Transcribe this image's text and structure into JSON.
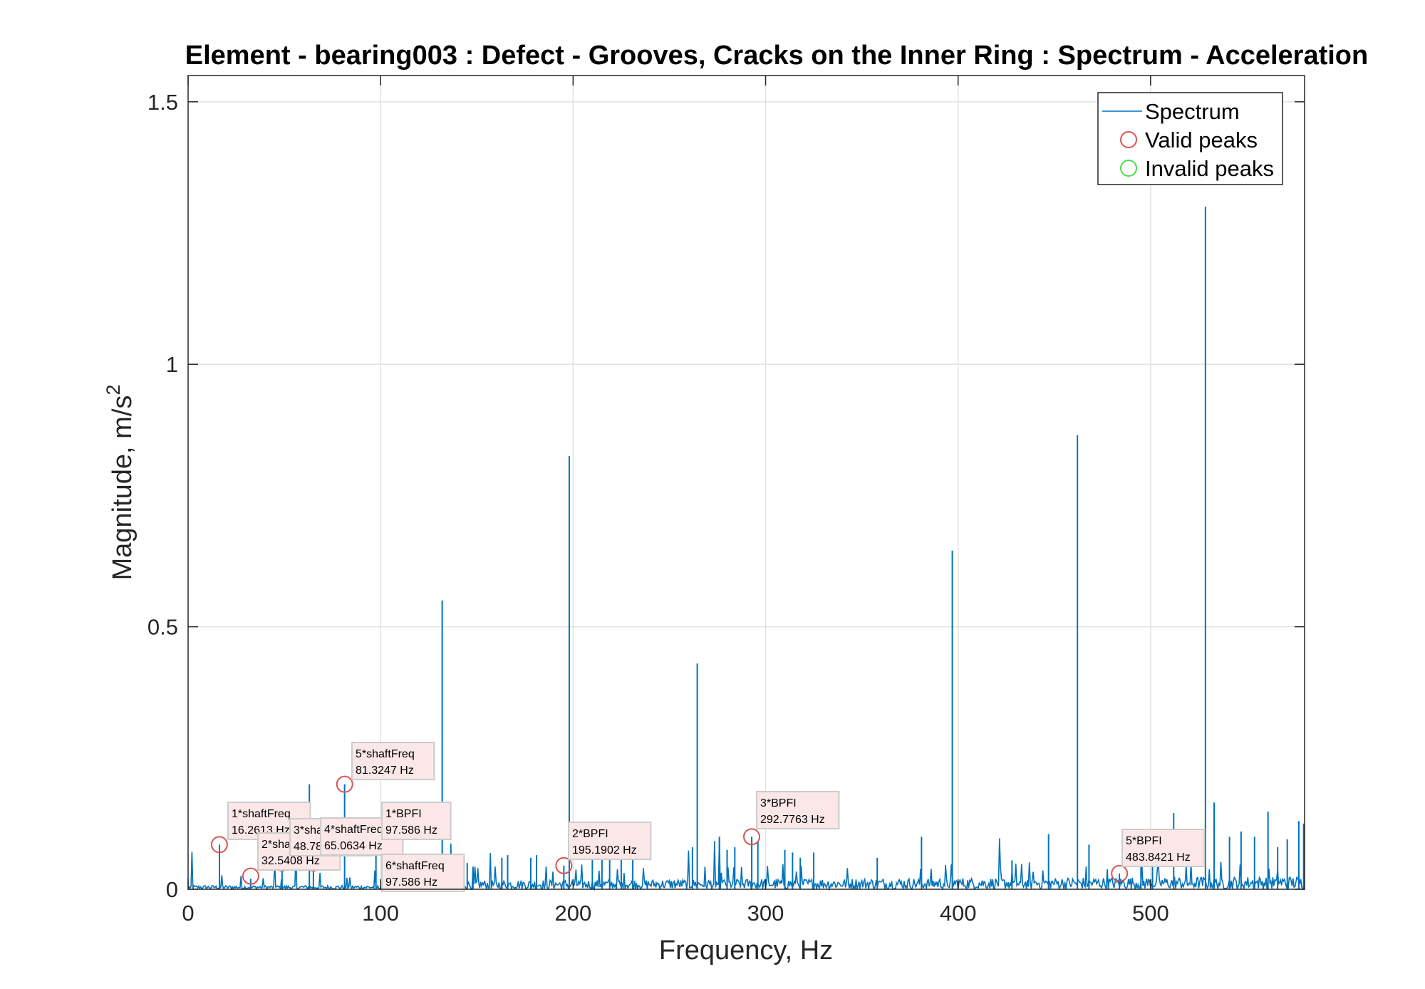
{
  "chart_data": {
    "type": "line",
    "title": "Element - bearing003 : Defect - Grooves, Cracks on the Inner Ring : Spectrum - Acceleration",
    "xlabel": "Frequency, Hz",
    "ylabel": "Magnitude, m/s",
    "ylabel_superscript": "2",
    "xlim": [
      0,
      580
    ],
    "ylim": [
      0,
      1.55
    ],
    "xticks": [
      0,
      100,
      200,
      300,
      400,
      500
    ],
    "xtick_labels": [
      "0",
      "100",
      "200",
      "300",
      "400",
      "500"
    ],
    "yticks": [
      0,
      0.5,
      1,
      1.5
    ],
    "ytick_labels": [
      "0",
      "0.5",
      "1",
      "1.5"
    ],
    "grid": true,
    "legend_position": "top-right",
    "legend": [
      {
        "label": "Spectrum",
        "marker": "line",
        "color": "#0072BD"
      },
      {
        "label": "Valid peaks",
        "marker": "circle",
        "color": "#D95350"
      },
      {
        "label": "Invalid peaks",
        "marker": "circle",
        "color": "#4DDB4D"
      }
    ],
    "series": [
      {
        "name": "Spectrum",
        "color": "#0072BD",
        "peaks": [
          {
            "x": 16.3,
            "y": 0.085
          },
          {
            "x": 32.5,
            "y": 0.02
          },
          {
            "x": 48.8,
            "y": 0.05
          },
          {
            "x": 63.0,
            "y": 0.2
          },
          {
            "x": 65.1,
            "y": 0.045
          },
          {
            "x": 81.3,
            "y": 0.2
          },
          {
            "x": 97.6,
            "y": 0.09
          },
          {
            "x": 132.0,
            "y": 0.55
          },
          {
            "x": 145.0,
            "y": 0.05
          },
          {
            "x": 148.0,
            "y": 0.04
          },
          {
            "x": 163.0,
            "y": 0.06
          },
          {
            "x": 166.0,
            "y": 0.065
          },
          {
            "x": 178.0,
            "y": 0.06
          },
          {
            "x": 181.0,
            "y": 0.065
          },
          {
            "x": 195.2,
            "y": 0.045
          },
          {
            "x": 198.0,
            "y": 0.825
          },
          {
            "x": 210.0,
            "y": 0.07
          },
          {
            "x": 215.0,
            "y": 0.08
          },
          {
            "x": 219.0,
            "y": 0.06
          },
          {
            "x": 225.0,
            "y": 0.07
          },
          {
            "x": 231.0,
            "y": 0.065
          },
          {
            "x": 264.5,
            "y": 0.43
          },
          {
            "x": 262.0,
            "y": 0.08
          },
          {
            "x": 276.0,
            "y": 0.1
          },
          {
            "x": 280.0,
            "y": 0.075
          },
          {
            "x": 284.0,
            "y": 0.08
          },
          {
            "x": 292.8,
            "y": 0.1
          },
          {
            "x": 296.0,
            "y": 0.09
          },
          {
            "x": 310.0,
            "y": 0.075
          },
          {
            "x": 314.0,
            "y": 0.07
          },
          {
            "x": 318.0,
            "y": 0.06
          },
          {
            "x": 325.0,
            "y": 0.07
          },
          {
            "x": 358.0,
            "y": 0.06
          },
          {
            "x": 381.0,
            "y": 0.1
          },
          {
            "x": 397.0,
            "y": 0.645
          },
          {
            "x": 428.0,
            "y": 0.055
          },
          {
            "x": 447.0,
            "y": 0.105
          },
          {
            "x": 462.0,
            "y": 0.865
          },
          {
            "x": 468.0,
            "y": 0.085
          },
          {
            "x": 483.8,
            "y": 0.03
          },
          {
            "x": 495.0,
            "y": 0.085
          },
          {
            "x": 501.0,
            "y": 0.07
          },
          {
            "x": 512.0,
            "y": 0.145
          },
          {
            "x": 528.5,
            "y": 1.3
          },
          {
            "x": 533.0,
            "y": 0.165
          },
          {
            "x": 541.0,
            "y": 0.1
          },
          {
            "x": 547.0,
            "y": 0.11
          },
          {
            "x": 554.0,
            "y": 0.1
          },
          {
            "x": 561.0,
            "y": 0.148
          },
          {
            "x": 566.0,
            "y": 0.08
          },
          {
            "x": 571.0,
            "y": 0.095
          },
          {
            "x": 577.0,
            "y": 0.13
          },
          {
            "x": 579.5,
            "y": 0.125
          }
        ]
      },
      {
        "name": "Valid peaks",
        "color": "#D95350",
        "points": [
          {
            "x": 16.2613,
            "y": 0.085,
            "label_line1": "1*shaftFreq",
            "label_line2": "16.2613 Hz"
          },
          {
            "x": 32.5408,
            "y": 0.025,
            "label_line1": "2*shaftFreq",
            "label_line2": "32.5408 Hz"
          },
          {
            "x": 48.7821,
            "y": 0.05,
            "label_line1": "3*shaftFreq",
            "label_line2": "48.7821 Hz"
          },
          {
            "x": 65.0634,
            "y": 0.05,
            "label_line1": "4*shaftFreq",
            "label_line2": "65.0634 Hz"
          },
          {
            "x": 81.3247,
            "y": 0.2,
            "label_line1": "5*shaftFreq",
            "label_line2": "81.3247 Hz"
          },
          {
            "x": 97.586,
            "y": 0.085,
            "label_line1": "1*BPFI",
            "label_line2": "97.586 Hz"
          },
          {
            "x": 97.586,
            "y": 0.085,
            "label_line1": "6*shaftFreq",
            "label_line2": "97.586 Hz"
          },
          {
            "x": 195.1902,
            "y": 0.045,
            "label_line1": "2*BPFI",
            "label_line2": "195.1902 Hz"
          },
          {
            "x": 292.7763,
            "y": 0.1,
            "label_line1": "3*BPFI",
            "label_line2": "292.7763 Hz"
          },
          {
            "x": 483.8421,
            "y": 0.03,
            "label_line1": "5*BPFI",
            "label_line2": "483.8421 Hz"
          }
        ]
      }
    ]
  }
}
